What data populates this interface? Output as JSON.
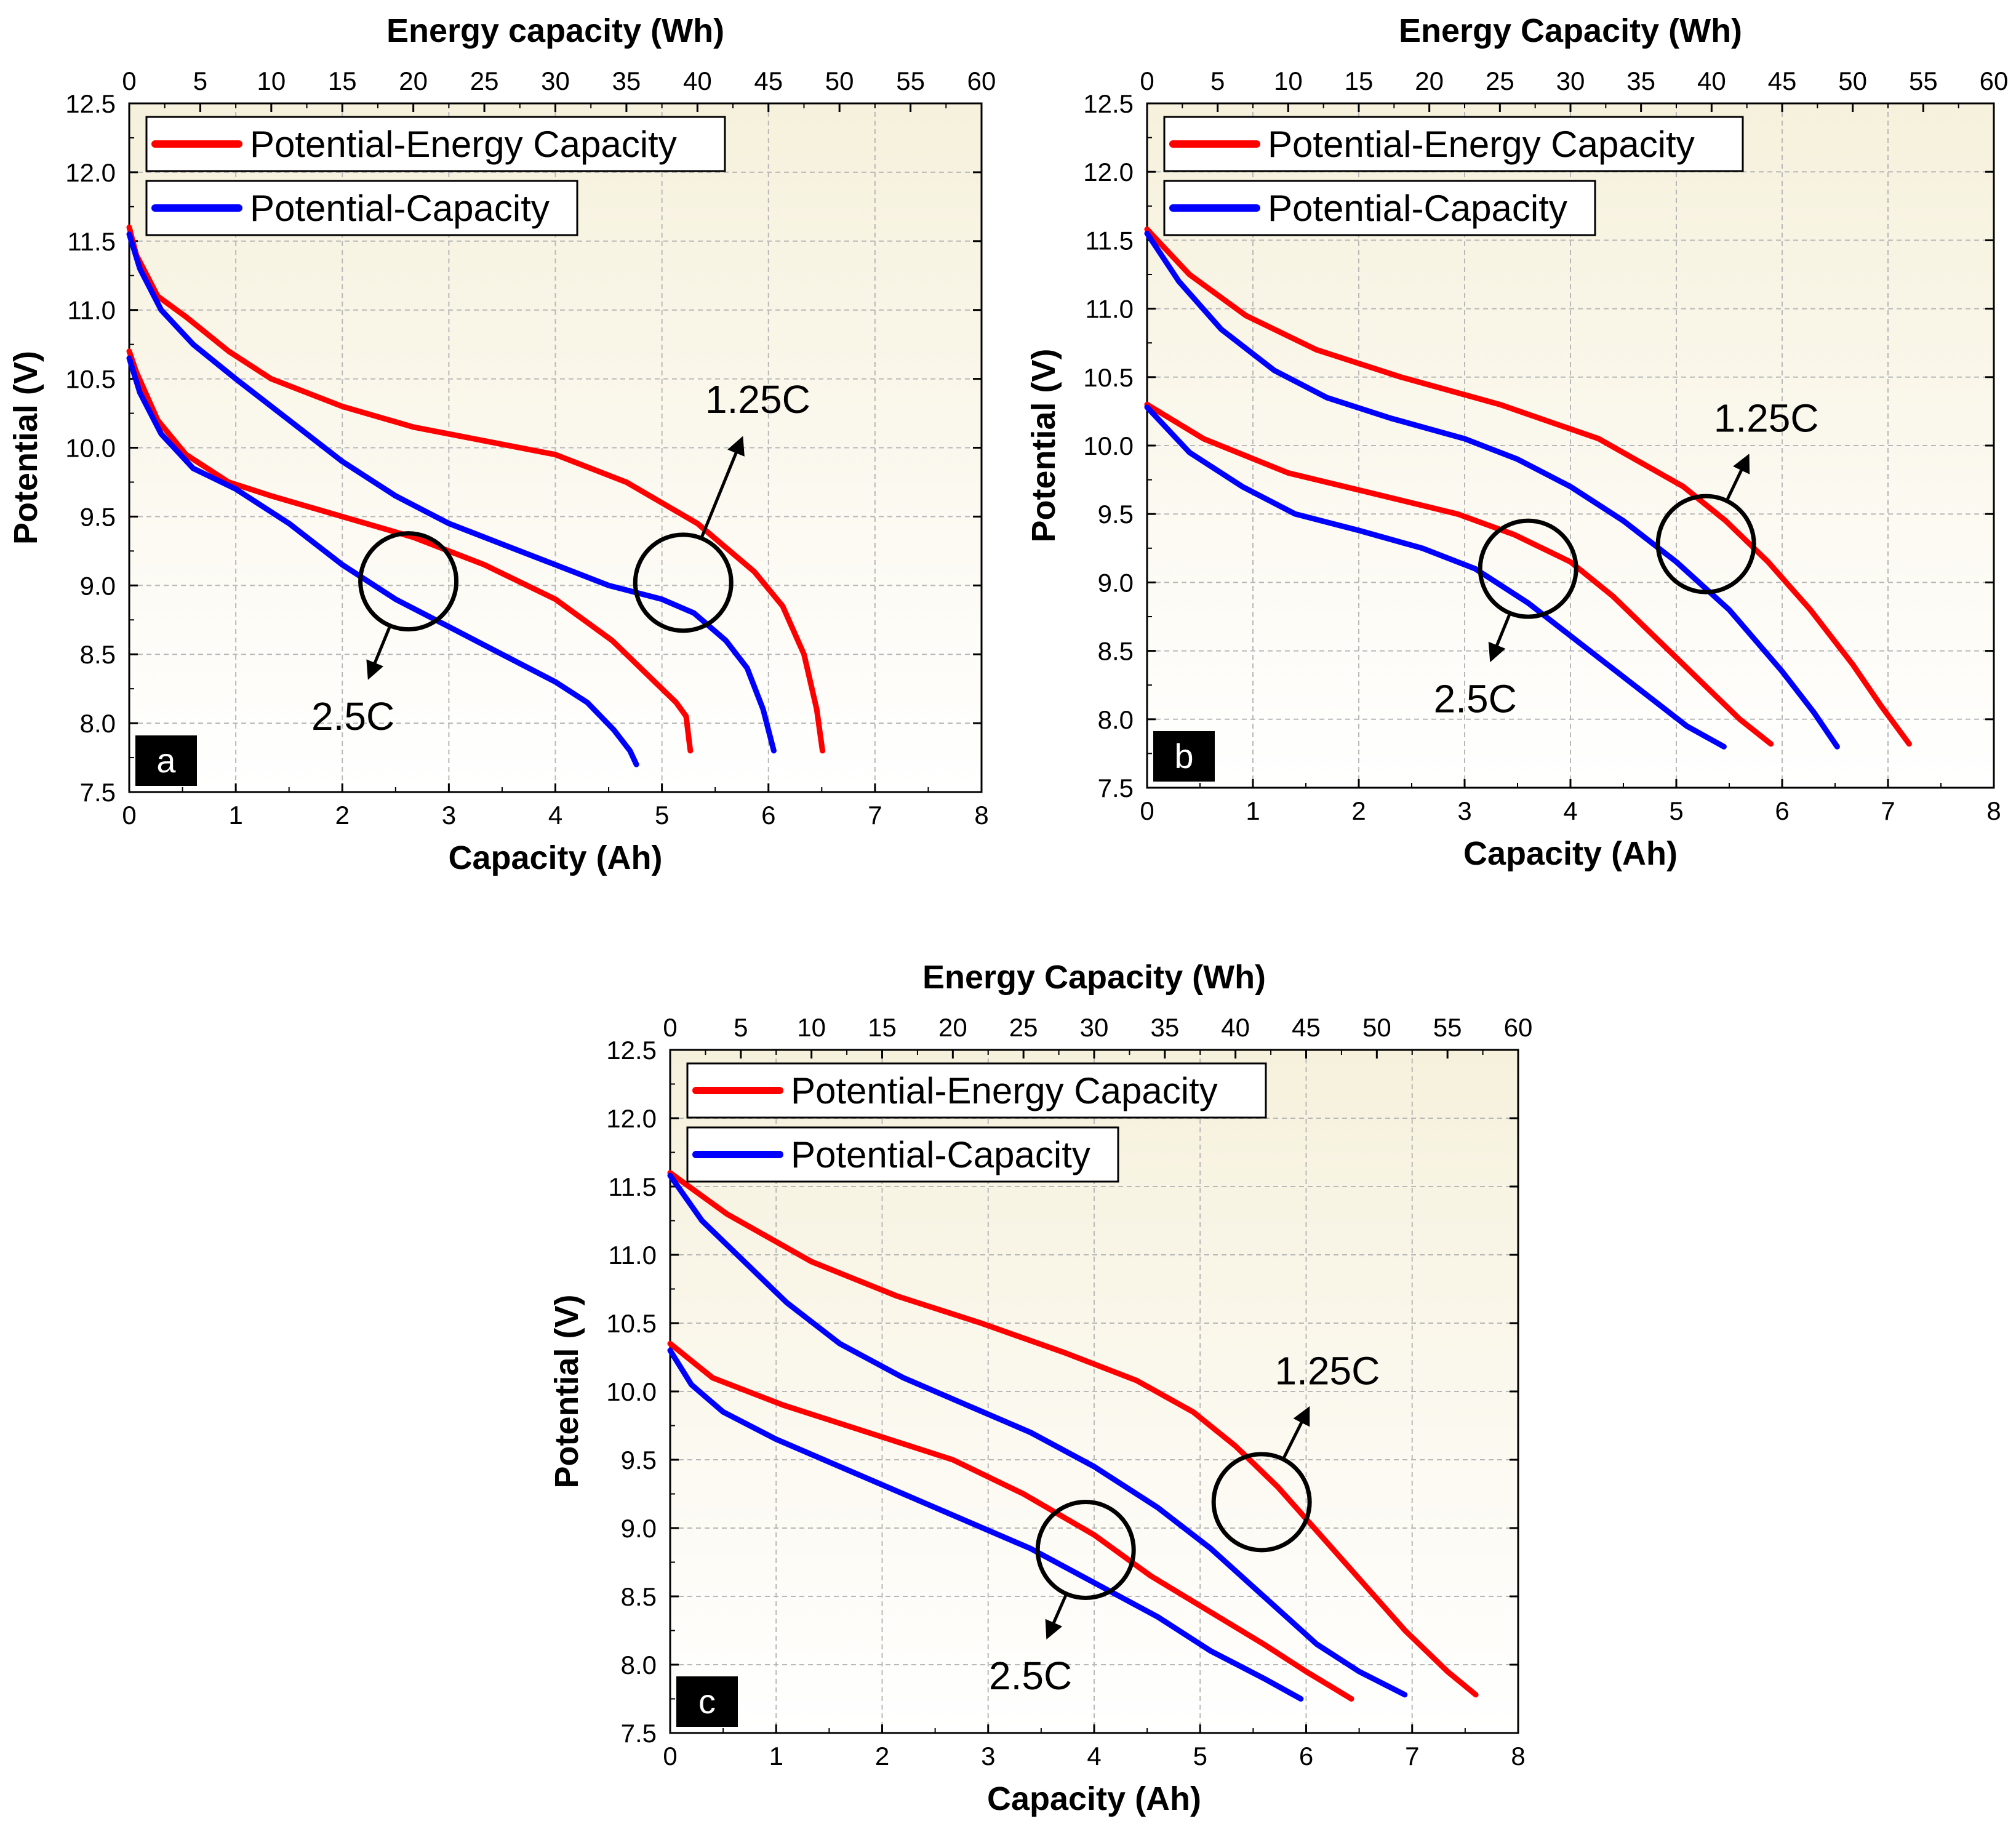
{
  "colors": {
    "energy_series": "#ff0000",
    "capacity_series": "#0000ff",
    "plot_bg_top": "#f6f1dc",
    "plot_bg_bottom": "#ffffff",
    "grid": "#b8b8b8",
    "panel_label_bg": "#000000"
  },
  "chart_data": [
    {
      "type": "line",
      "panel": "a",
      "top_axis_title": "Energy capacity (Wh)",
      "bottom_axis_title": "Capacity (Ah)",
      "y_axis_title": "Potential (V)",
      "xlim": [
        0,
        8
      ],
      "x_ticks": [
        "0",
        "1",
        "2",
        "3",
        "4",
        "5",
        "6",
        "7",
        "8"
      ],
      "top_xlim": [
        0,
        60
      ],
      "top_ticks": [
        "0",
        "5",
        "10",
        "15",
        "20",
        "25",
        "30",
        "35",
        "40",
        "45",
        "50",
        "55",
        "60"
      ],
      "ylim": [
        7.5,
        12.5
      ],
      "y_ticks": [
        "7.5",
        "8.0",
        "8.5",
        "9.0",
        "9.5",
        "10.0",
        "10.5",
        "11.0",
        "11.5",
        "12.0",
        "12.5"
      ],
      "grid": true,
      "legend": [
        "Potential-Energy Capacity",
        "Potential-Capacity"
      ],
      "legend_position": "top-left",
      "series": [
        {
          "name": "1.25C Potential-Energy Capacity",
          "axis": "top",
          "color_key": "energy_series",
          "x": [
            0,
            0.5,
            2,
            4,
            7,
            10,
            15,
            20,
            25,
            30,
            35,
            40,
            44,
            46,
            47.5,
            48.4,
            48.8
          ],
          "y": [
            11.6,
            11.4,
            11.1,
            10.95,
            10.7,
            10.5,
            10.3,
            10.15,
            10.05,
            9.95,
            9.75,
            9.45,
            9.1,
            8.85,
            8.5,
            8.1,
            7.8
          ]
        },
        {
          "name": "1.25C Potential-Capacity",
          "axis": "bottom",
          "color_key": "capacity_series",
          "x": [
            0,
            0.1,
            0.3,
            0.6,
            1,
            1.5,
            2,
            2.5,
            3,
            3.5,
            4,
            4.5,
            5,
            5.3,
            5.6,
            5.8,
            5.95,
            6.05
          ],
          "y": [
            11.55,
            11.3,
            11.0,
            10.75,
            10.5,
            10.2,
            9.9,
            9.65,
            9.45,
            9.3,
            9.15,
            9.0,
            8.9,
            8.8,
            8.6,
            8.4,
            8.1,
            7.8
          ]
        },
        {
          "name": "2.5C Potential-Energy Capacity",
          "axis": "top",
          "color_key": "energy_series",
          "x": [
            0,
            0.5,
            2,
            4,
            7,
            10,
            15,
            20,
            25,
            30,
            34,
            37,
            38.5,
            39.2,
            39.5
          ],
          "y": [
            10.7,
            10.55,
            10.2,
            9.95,
            9.75,
            9.65,
            9.5,
            9.35,
            9.15,
            8.9,
            8.6,
            8.3,
            8.15,
            8.05,
            7.8
          ]
        },
        {
          "name": "2.5C Potential-Capacity",
          "axis": "bottom",
          "color_key": "capacity_series",
          "x": [
            0,
            0.1,
            0.3,
            0.6,
            1,
            1.5,
            2,
            2.5,
            3,
            3.5,
            4,
            4.3,
            4.55,
            4.7,
            4.76
          ],
          "y": [
            10.65,
            10.4,
            10.1,
            9.85,
            9.7,
            9.45,
            9.15,
            8.9,
            8.7,
            8.5,
            8.3,
            8.15,
            7.95,
            7.8,
            7.7
          ]
        }
      ],
      "annotations": [
        {
          "text": "1.25C",
          "circle_at": [
            5.2,
            9.02
          ],
          "label_at": [
            5.9,
            10.35
          ]
        },
        {
          "text": "2.5C",
          "circle_at": [
            2.62,
            9.03
          ],
          "label_at": [
            2.1,
            8.05
          ]
        }
      ],
      "panel_label": "a"
    },
    {
      "type": "line",
      "panel": "b",
      "top_axis_title": "Energy Capacity (Wh)",
      "bottom_axis_title": "Capacity (Ah)",
      "y_axis_title": "Potential (V)",
      "xlim": [
        0,
        8
      ],
      "x_ticks": [
        "0",
        "1",
        "2",
        "3",
        "4",
        "5",
        "6",
        "7",
        "8"
      ],
      "top_xlim": [
        0,
        60
      ],
      "top_ticks": [
        "0",
        "5",
        "10",
        "15",
        "20",
        "25",
        "30",
        "35",
        "40",
        "45",
        "50",
        "55",
        "60"
      ],
      "ylim": [
        7.5,
        12.5
      ],
      "y_ticks": [
        "7.5",
        "8.0",
        "8.5",
        "9.0",
        "9.5",
        "10.0",
        "10.5",
        "11.0",
        "11.5",
        "12.0",
        "12.5"
      ],
      "grid": true,
      "legend": [
        "Potential-Energy Capacity",
        "Potential-Capacity"
      ],
      "legend_position": "top-left",
      "series": [
        {
          "name": "1.25C Potential-Energy Capacity",
          "axis": "top",
          "color_key": "energy_series",
          "x": [
            0,
            3,
            7,
            12,
            18,
            25,
            32,
            38,
            41,
            44,
            47,
            50,
            52,
            54
          ],
          "y": [
            11.58,
            11.25,
            10.95,
            10.7,
            10.5,
            10.3,
            10.05,
            9.7,
            9.45,
            9.15,
            8.8,
            8.4,
            8.1,
            7.82
          ]
        },
        {
          "name": "1.25C Potential-Capacity",
          "axis": "bottom",
          "color_key": "capacity_series",
          "x": [
            0,
            0.3,
            0.7,
            1.2,
            1.7,
            2.3,
            3,
            3.5,
            4,
            4.5,
            5,
            5.5,
            6,
            6.3,
            6.52
          ],
          "y": [
            11.55,
            11.2,
            10.85,
            10.55,
            10.35,
            10.2,
            10.05,
            9.9,
            9.7,
            9.45,
            9.15,
            8.8,
            8.35,
            8.05,
            7.8
          ]
        },
        {
          "name": "2.5C Potential-Energy Capacity",
          "axis": "top",
          "color_key": "energy_series",
          "x": [
            0,
            4,
            10,
            16,
            22,
            26,
            30,
            33,
            36,
            39,
            42,
            44.2
          ],
          "y": [
            10.3,
            10.05,
            9.8,
            9.65,
            9.5,
            9.35,
            9.15,
            8.9,
            8.6,
            8.3,
            8.0,
            7.82
          ]
        },
        {
          "name": "2.5C Potential-Capacity",
          "axis": "bottom",
          "color_key": "capacity_series",
          "x": [
            0,
            0.4,
            0.9,
            1.4,
            2,
            2.6,
            3.1,
            3.6,
            4.1,
            4.6,
            5.1,
            5.45
          ],
          "y": [
            10.28,
            9.95,
            9.7,
            9.5,
            9.38,
            9.25,
            9.1,
            8.85,
            8.55,
            8.25,
            7.95,
            7.8
          ]
        }
      ],
      "annotations": [
        {
          "text": "1.25C",
          "circle_at": [
            5.28,
            9.28
          ],
          "label_at": [
            5.85,
            10.2
          ]
        },
        {
          "text": "2.5C",
          "circle_at": [
            3.6,
            9.1
          ],
          "label_at": [
            3.1,
            8.15
          ]
        }
      ],
      "panel_label": "b"
    },
    {
      "type": "line",
      "panel": "c",
      "top_axis_title": "Energy Capacity (Wh)",
      "bottom_axis_title": "Capacity (Ah)",
      "y_axis_title": "Potential (V)",
      "xlim": [
        0,
        8
      ],
      "x_ticks": [
        "0",
        "1",
        "2",
        "3",
        "4",
        "5",
        "6",
        "7",
        "8"
      ],
      "top_xlim": [
        0,
        60
      ],
      "top_ticks": [
        "0",
        "5",
        "10",
        "15",
        "20",
        "25",
        "30",
        "35",
        "40",
        "45",
        "50",
        "55",
        "60"
      ],
      "ylim": [
        7.5,
        12.5
      ],
      "y_ticks": [
        "7.5",
        "8.0",
        "8.5",
        "9.0",
        "9.5",
        "10.0",
        "10.5",
        "11.0",
        "11.5",
        "12.0",
        "12.5"
      ],
      "grid": true,
      "legend": [
        "Potential-Energy Capacity",
        "Potential-Capacity"
      ],
      "legend_position": "top-left",
      "series": [
        {
          "name": "1.25C Potential-Energy Capacity",
          "axis": "top",
          "color_key": "energy_series",
          "x": [
            0,
            4,
            10,
            16,
            22,
            28,
            33,
            37,
            40,
            43,
            46,
            49,
            52,
            55,
            57
          ],
          "y": [
            11.6,
            11.3,
            10.95,
            10.7,
            10.5,
            10.28,
            10.08,
            9.85,
            9.6,
            9.3,
            8.95,
            8.6,
            8.25,
            7.95,
            7.78
          ]
        },
        {
          "name": "1.25C Potential-Capacity",
          "axis": "bottom",
          "color_key": "capacity_series",
          "x": [
            0,
            0.3,
            0.7,
            1.1,
            1.6,
            2.2,
            2.8,
            3.4,
            4,
            4.6,
            5.1,
            5.6,
            6.1,
            6.5,
            6.93
          ],
          "y": [
            11.58,
            11.25,
            10.95,
            10.65,
            10.35,
            10.1,
            9.9,
            9.7,
            9.45,
            9.15,
            8.85,
            8.5,
            8.15,
            7.95,
            7.78
          ]
        },
        {
          "name": "2.5C Potential-Energy Capacity",
          "axis": "top",
          "color_key": "energy_series",
          "x": [
            0,
            3,
            8,
            14,
            20,
            25,
            30,
            34,
            38,
            42,
            45,
            48.2
          ],
          "y": [
            10.35,
            10.1,
            9.9,
            9.7,
            9.5,
            9.25,
            8.95,
            8.65,
            8.4,
            8.15,
            7.95,
            7.75
          ]
        },
        {
          "name": "2.5C Potential-Capacity",
          "axis": "bottom",
          "color_key": "capacity_series",
          "x": [
            0,
            0.2,
            0.5,
            1,
            1.6,
            2.2,
            2.8,
            3.4,
            4,
            4.6,
            5.1,
            5.6,
            5.95
          ],
          "y": [
            10.3,
            10.05,
            9.85,
            9.65,
            9.45,
            9.25,
            9.05,
            8.85,
            8.6,
            8.35,
            8.1,
            7.9,
            7.75
          ]
        }
      ],
      "annotations": [
        {
          "text": "1.25C",
          "circle_at": [
            5.58,
            9.19
          ],
          "label_at": [
            6.2,
            10.15
          ]
        },
        {
          "text": "2.5C",
          "circle_at": [
            3.92,
            8.84
          ],
          "label_at": [
            3.4,
            7.92
          ]
        }
      ],
      "panel_label": "c"
    }
  ]
}
